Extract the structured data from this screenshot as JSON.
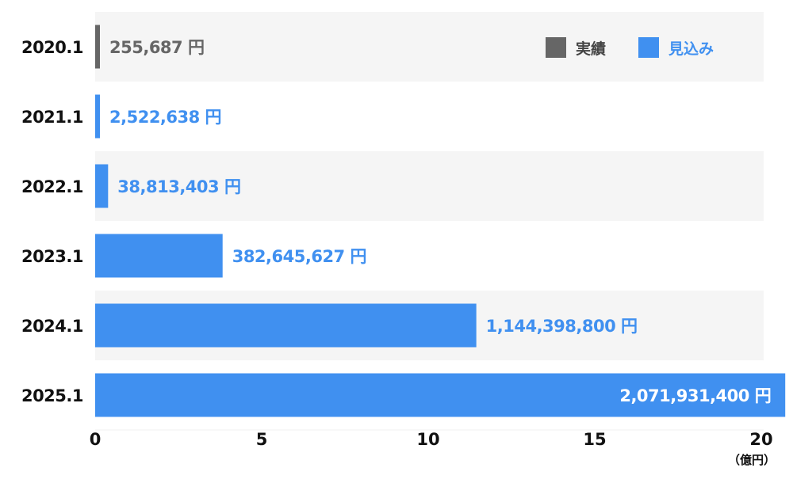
{
  "chart_data": {
    "type": "bar",
    "orientation": "horizontal",
    "categories": [
      "2020.1",
      "2021.1",
      "2022.1",
      "2023.1",
      "2024.1",
      "2025.1"
    ],
    "values": [
      255687,
      2522638,
      38813403,
      382645627,
      1144398800,
      2071931400
    ],
    "value_labels": [
      "255,687 円",
      "2,522,638 円",
      "38,813,403 円",
      "382,645,627 円",
      "1,144,398,800 円",
      "2,071,931,400 円"
    ],
    "bar_kind": [
      "実績",
      "見込み",
      "見込み",
      "見込み",
      "見込み",
      "見込み"
    ],
    "series": [
      {
        "name": "実績",
        "color": "#666666"
      },
      {
        "name": "見込み",
        "color": "#4090f0"
      }
    ],
    "x_ticks": [
      "0",
      "5",
      "10",
      "15",
      "20"
    ],
    "x_tick_values": [
      0,
      5,
      10,
      15,
      20
    ],
    "x_unit": "（億円）",
    "xlim": [
      0,
      2000000000
    ],
    "legend_position": "top-right",
    "row_band_colors": [
      "#f5f5f5",
      "#ffffff"
    ]
  }
}
